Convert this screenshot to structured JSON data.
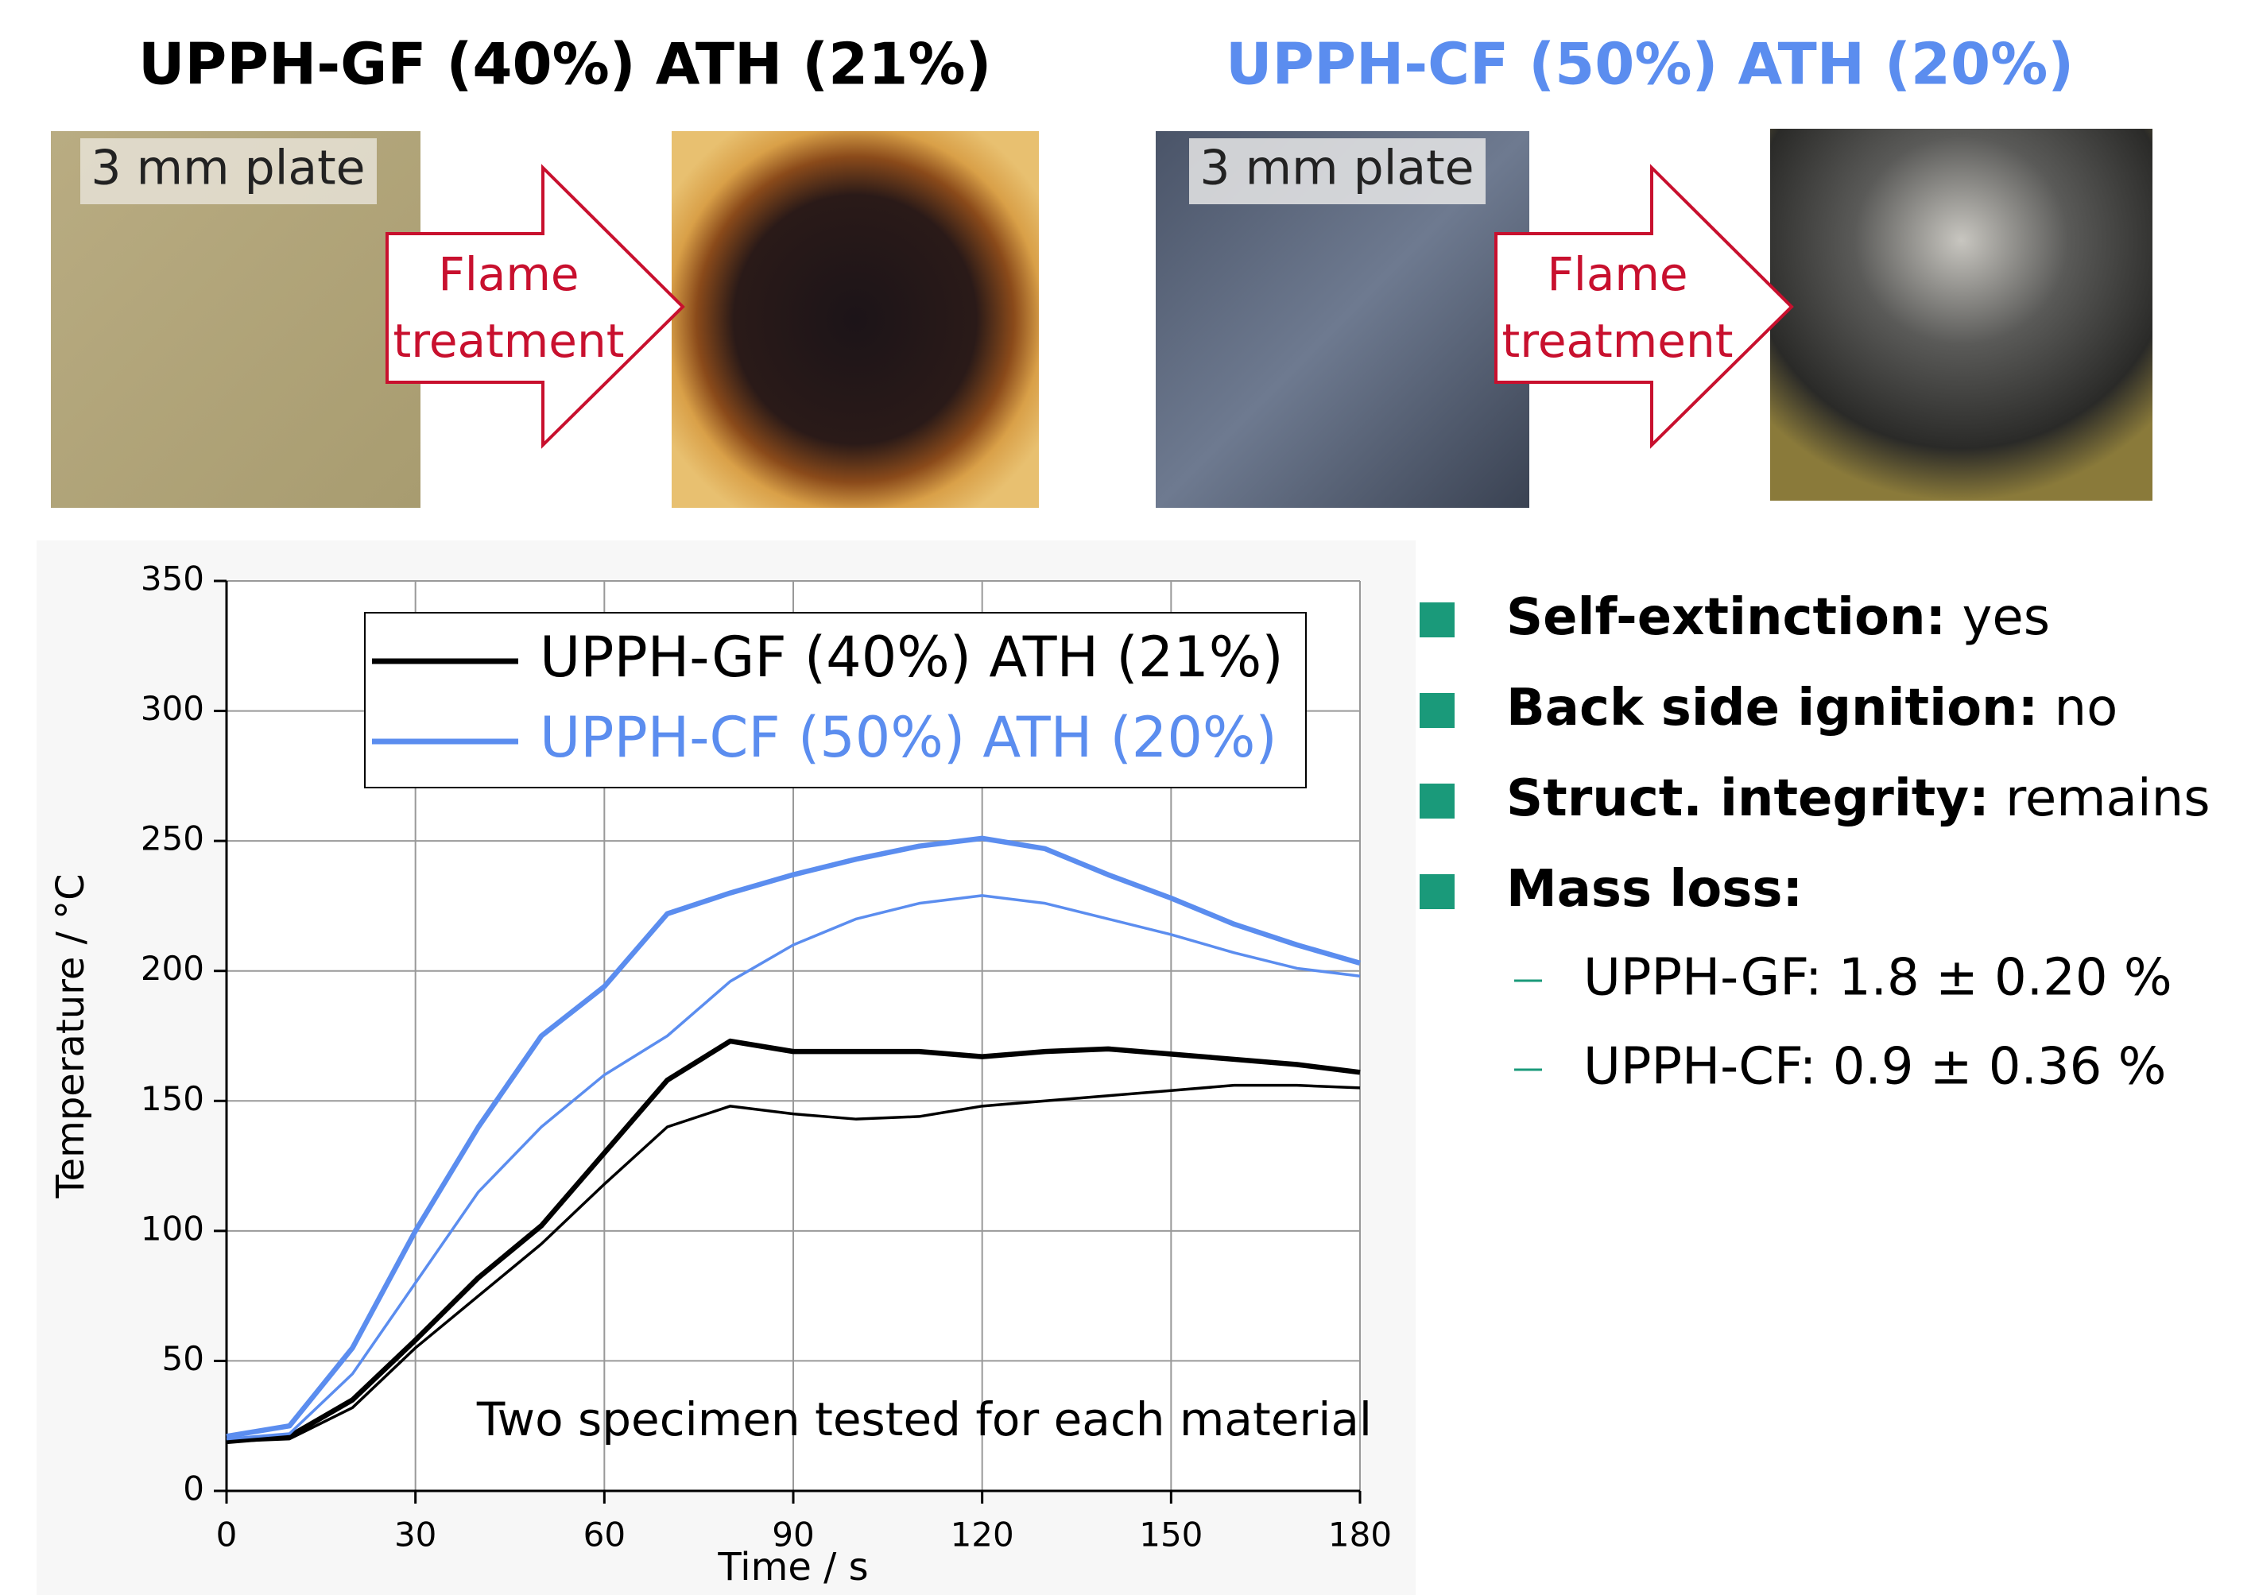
{
  "panels": [
    {
      "title": "UPPH-GF (40%) ATH (21%)",
      "title_color": "#000000",
      "plate_label": "3 mm plate",
      "arrow_label": [
        "Flame",
        "treatment"
      ]
    },
    {
      "title": "UPPH-CF (50%) ATH (20%)",
      "title_color": "#5b8def",
      "plate_label": "3 mm plate",
      "arrow_label": [
        "Flame",
        "treatment"
      ]
    }
  ],
  "chart_data": {
    "type": "line",
    "x_label": "Time / s",
    "y_label": "Temperature / °C",
    "annotation": "Two specimen tested for each material",
    "x": [
      0,
      10,
      20,
      30,
      40,
      50,
      60,
      70,
      80,
      90,
      100,
      110,
      120,
      130,
      140,
      150,
      160,
      170,
      180
    ],
    "series": [
      {
        "name": "UPPH-GF (40%) ATH (21%)",
        "color": "#000000",
        "specimens": [
          {
            "values": [
              19,
              21,
              35,
              58,
              82,
              102,
              130,
              158,
              173,
              169,
              169,
              169,
              167,
              169,
              170,
              168,
              166,
              164,
              161
            ]
          },
          {
            "values": [
              19,
              20,
              32,
              55,
              75,
              95,
              118,
              140,
              148,
              145,
              143,
              144,
              148,
              150,
              152,
              154,
              156,
              156,
              155
            ]
          }
        ]
      },
      {
        "name": "UPPH-CF (50%) ATH (20%)",
        "color": "#5b8def",
        "specimens": [
          {
            "values": [
              21,
              25,
              55,
              100,
              140,
              175,
              194,
              222,
              230,
              237,
              243,
              248,
              251,
              247,
              237,
              228,
              218,
              210,
              203
            ]
          },
          {
            "values": [
              20,
              22,
              45,
              80,
              115,
              140,
              160,
              175,
              196,
              210,
              220,
              226,
              229,
              226,
              220,
              214,
              207,
              201,
              198
            ]
          }
        ]
      }
    ],
    "xlim": [
      0,
      180
    ],
    "xticks": [
      0,
      30,
      60,
      90,
      120,
      150,
      180
    ],
    "ylim": [
      0,
      350
    ],
    "yticks": [
      0,
      50,
      100,
      150,
      200,
      250,
      300,
      350
    ],
    "grid": true,
    "legend": "top"
  },
  "results": {
    "bullet_color": "#1a9a7a",
    "items": [
      {
        "label": "Self-extinction:",
        "value": "yes"
      },
      {
        "label": "Back side ignition:",
        "value": "no"
      },
      {
        "label": "Struct. integrity:",
        "value": "remains"
      },
      {
        "label": "Mass loss:"
      }
    ],
    "sub_items": [
      "UPPH-GF: 1.8 ± 0.20 %",
      "UPPH-CF: 0.9 ± 0.36 %"
    ]
  }
}
